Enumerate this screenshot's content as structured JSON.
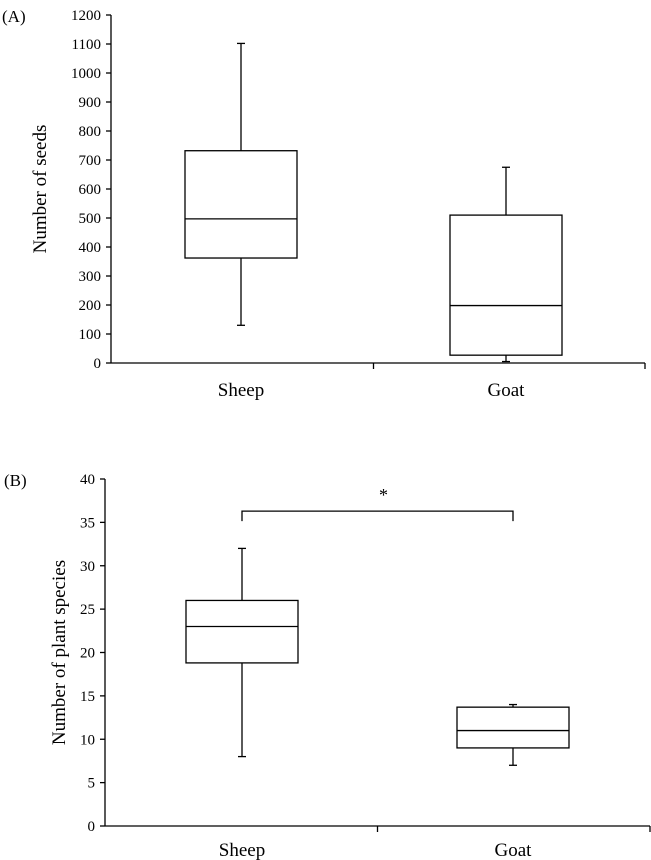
{
  "chart_data": [
    {
      "type": "box",
      "panel_label": "(A)",
      "ylabel": "Number of seeds",
      "ylim": [
        0,
        1200
      ],
      "yticks": [
        0,
        100,
        200,
        300,
        400,
        500,
        600,
        700,
        800,
        900,
        1000,
        1100,
        1200
      ],
      "categories": [
        "Sheep",
        "Goat"
      ],
      "boxes": [
        {
          "category": "Sheep",
          "min": 130,
          "q1": 362,
          "median": 497,
          "q3": 732,
          "max": 1102
        },
        {
          "category": "Goat",
          "min": 5,
          "q1": 27,
          "median": 198,
          "q3": 510,
          "max": 675
        }
      ],
      "significance": null
    },
    {
      "type": "box",
      "panel_label": "(B)",
      "ylabel": "Number of plant species",
      "ylim": [
        0,
        40
      ],
      "yticks": [
        0,
        5,
        10,
        15,
        20,
        25,
        30,
        35,
        40
      ],
      "categories": [
        "Sheep",
        "Goat"
      ],
      "boxes": [
        {
          "category": "Sheep",
          "min": 8,
          "q1": 18.8,
          "median": 23,
          "q3": 26,
          "max": 32
        },
        {
          "category": "Goat",
          "min": 7,
          "q1": 9,
          "median": 11,
          "q3": 13.7,
          "max": 14
        }
      ],
      "significance": {
        "label": "*",
        "between": [
          "Sheep",
          "Goat"
        ],
        "level": 36.3
      }
    }
  ]
}
